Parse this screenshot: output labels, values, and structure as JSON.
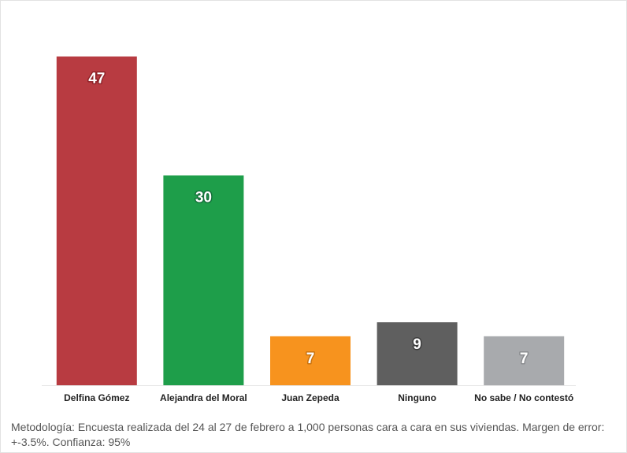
{
  "chart_data": {
    "type": "bar",
    "categories": [
      "Delfina Gómez",
      "Alejandra del Moral",
      "Juan Zepeda",
      "Ninguno",
      "No sabe / No contestó"
    ],
    "values": [
      47,
      30,
      7,
      9,
      7
    ],
    "data_labels": [
      "47",
      "30",
      "7",
      "9",
      "7"
    ],
    "colors": [
      "#b83b41",
      "#1e9e4a",
      "#f7931e",
      "#5f5f5f",
      "#a8aaad"
    ],
    "label_outline_colors": [
      "#8e2328",
      "#14703a",
      "#c8720f",
      "#3c3c3c",
      "#8a8c8f"
    ],
    "title": "",
    "xlabel": "",
    "ylabel": "",
    "ylim": [
      0,
      50
    ],
    "grid": false,
    "legend": "none"
  },
  "footnote": "Metodología: Encuesta realizada del 24 al 27 de febrero a 1,000 personas cara a cara en sus viviendas. Margen de error: +-3.5%. Confianza: 95%"
}
